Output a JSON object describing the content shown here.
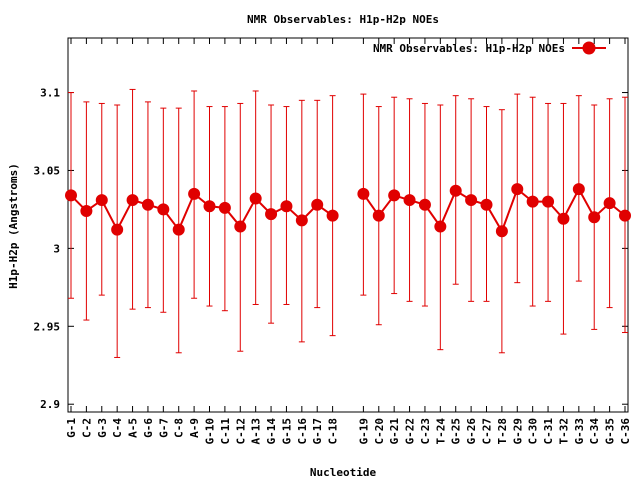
{
  "chart_data": {
    "type": "line",
    "title": "NMR Observables: H1p-H2p NOEs",
    "xlabel": "Nucleotide",
    "ylabel": "H1p-H2p (Angstroms)",
    "ylim": [
      2.895,
      3.135
    ],
    "yticks": [
      2.9,
      2.95,
      3,
      3.05,
      3.1
    ],
    "ytick_labels": [
      "2.9",
      "2.95",
      "3",
      "3.05",
      "3.1"
    ],
    "grid": false,
    "legend_placement": "top-right",
    "series": [
      {
        "name": "NMR Observables: H1p-H2p NOEs",
        "color": "#e00000",
        "segments": [
          {
            "points": [
              {
                "label": "G-1",
                "value": 3.034,
                "low": 2.968,
                "high": 3.1
              },
              {
                "label": "C-2",
                "value": 3.024,
                "low": 2.954,
                "high": 3.094
              },
              {
                "label": "G-3",
                "value": 3.031,
                "low": 2.97,
                "high": 3.093
              },
              {
                "label": "C-4",
                "value": 3.012,
                "low": 2.93,
                "high": 3.092
              },
              {
                "label": "A-5",
                "value": 3.031,
                "low": 2.961,
                "high": 3.102
              },
              {
                "label": "G-6",
                "value": 3.028,
                "low": 2.962,
                "high": 3.094
              },
              {
                "label": "G-7",
                "value": 3.025,
                "low": 2.959,
                "high": 3.09
              },
              {
                "label": "C-8",
                "value": 3.012,
                "low": 2.933,
                "high": 3.09
              },
              {
                "label": "A-9",
                "value": 3.035,
                "low": 2.968,
                "high": 3.101
              },
              {
                "label": "G-10",
                "value": 3.027,
                "low": 2.963,
                "high": 3.091
              },
              {
                "label": "C-11",
                "value": 3.026,
                "low": 2.96,
                "high": 3.091
              },
              {
                "label": "C-12",
                "value": 3.014,
                "low": 2.934,
                "high": 3.093
              },
              {
                "label": "A-13",
                "value": 3.032,
                "low": 2.964,
                "high": 3.101
              },
              {
                "label": "G-14",
                "value": 3.022,
                "low": 2.952,
                "high": 3.092
              },
              {
                "label": "G-15",
                "value": 3.027,
                "low": 2.964,
                "high": 3.091
              },
              {
                "label": "C-16",
                "value": 3.018,
                "low": 2.94,
                "high": 3.095
              },
              {
                "label": "G-17",
                "value": 3.028,
                "low": 2.962,
                "high": 3.095
              },
              {
                "label": "C-18",
                "value": 3.021,
                "low": 2.944,
                "high": 3.098
              }
            ]
          },
          {
            "points": [
              {
                "label": "G-19",
                "value": 3.035,
                "low": 2.97,
                "high": 3.099
              },
              {
                "label": "C-20",
                "value": 3.021,
                "low": 2.951,
                "high": 3.091
              },
              {
                "label": "G-21",
                "value": 3.034,
                "low": 2.971,
                "high": 3.097
              },
              {
                "label": "G-22",
                "value": 3.031,
                "low": 2.966,
                "high": 3.096
              },
              {
                "label": "C-23",
                "value": 3.028,
                "low": 2.963,
                "high": 3.093
              },
              {
                "label": "T-24",
                "value": 3.014,
                "low": 2.935,
                "high": 3.092
              },
              {
                "label": "G-25",
                "value": 3.037,
                "low": 2.977,
                "high": 3.098
              },
              {
                "label": "G-26",
                "value": 3.031,
                "low": 2.966,
                "high": 3.096
              },
              {
                "label": "C-27",
                "value": 3.028,
                "low": 2.966,
                "high": 3.091
              },
              {
                "label": "T-28",
                "value": 3.011,
                "low": 2.933,
                "high": 3.089
              },
              {
                "label": "G-29",
                "value": 3.038,
                "low": 2.978,
                "high": 3.099
              },
              {
                "label": "C-30",
                "value": 3.03,
                "low": 2.963,
                "high": 3.097
              },
              {
                "label": "C-31",
                "value": 3.03,
                "low": 2.966,
                "high": 3.093
              },
              {
                "label": "T-32",
                "value": 3.019,
                "low": 2.945,
                "high": 3.093
              },
              {
                "label": "G-33",
                "value": 3.038,
                "low": 2.979,
                "high": 3.098
              },
              {
                "label": "C-34",
                "value": 3.02,
                "low": 2.948,
                "high": 3.092
              },
              {
                "label": "G-35",
                "value": 3.029,
                "low": 2.962,
                "high": 3.096
              },
              {
                "label": "C-36",
                "value": 3.021,
                "low": 2.946,
                "high": 3.097
              }
            ]
          }
        ]
      }
    ]
  }
}
